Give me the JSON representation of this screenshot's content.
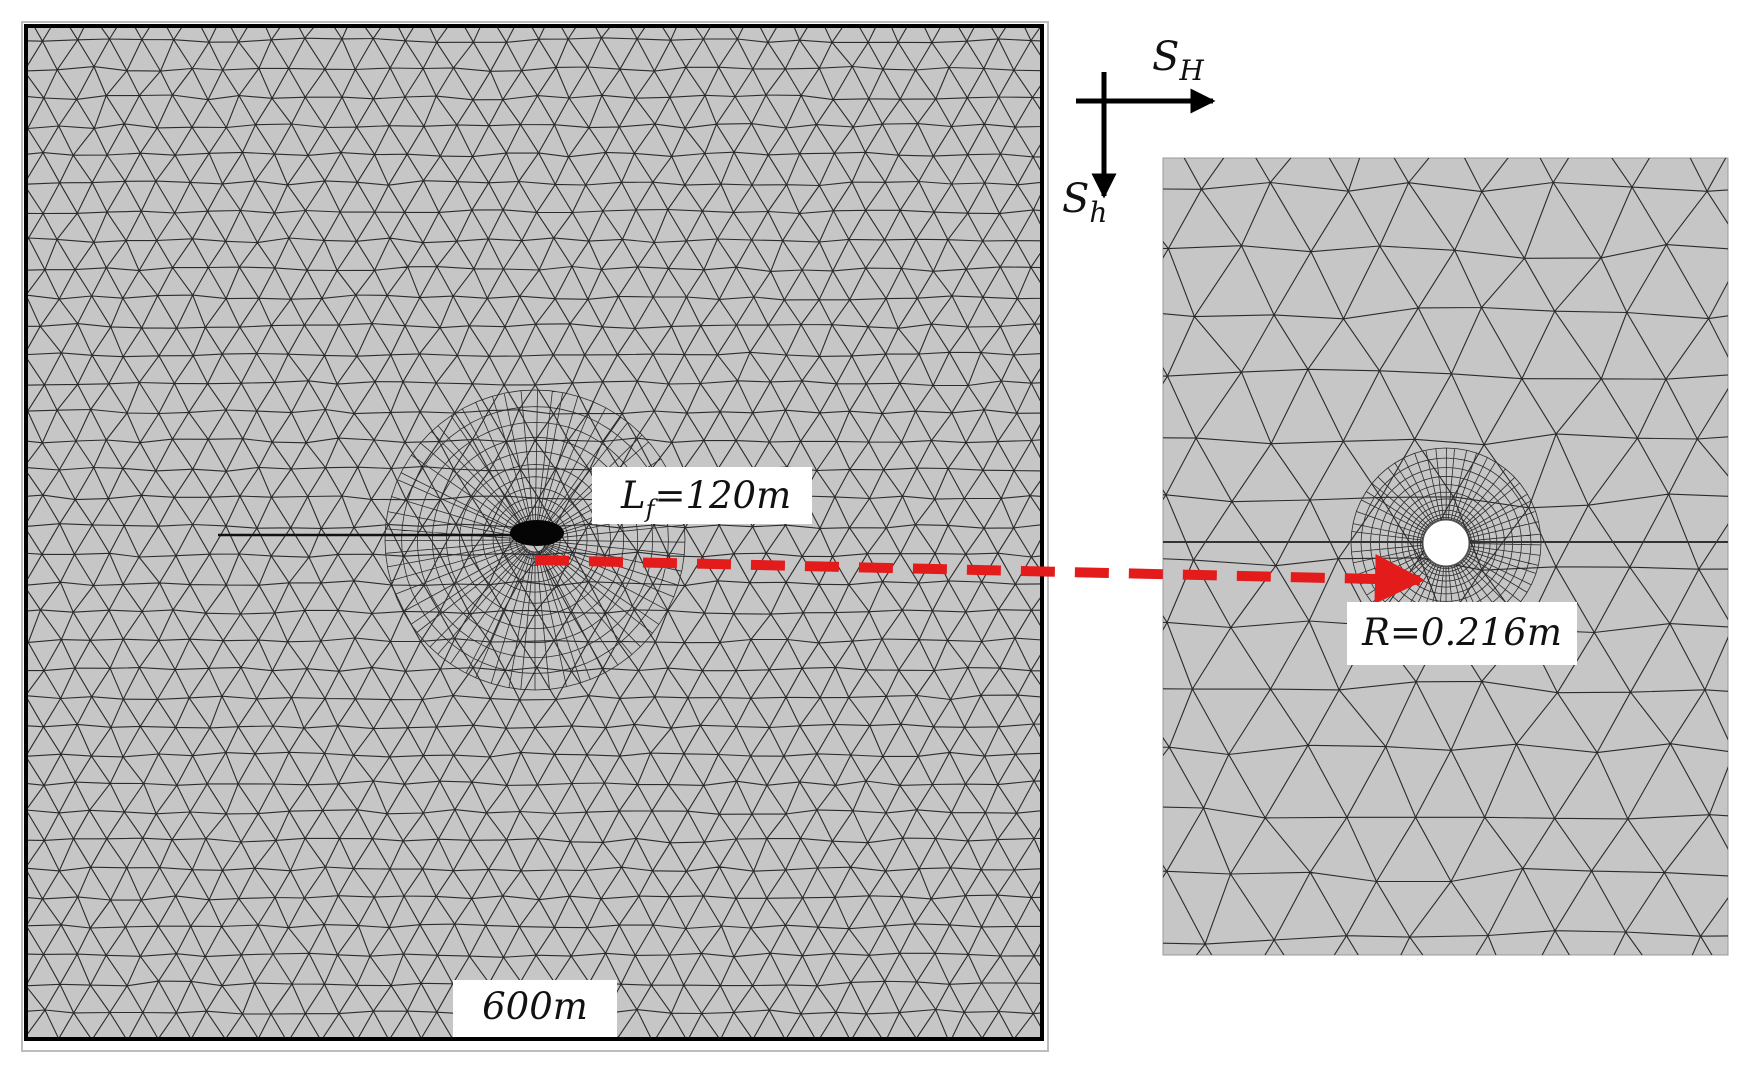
{
  "left_panel": {
    "fracture_label": {
      "main": "L",
      "sub": "f",
      "value": "=120m"
    },
    "size_label": "600m"
  },
  "right_panel": {
    "radius_label": "R=0.216m"
  },
  "stress_axes": {
    "horizontal": {
      "main": "S",
      "sub": "H"
    },
    "vertical": {
      "main": "S",
      "sub": "h"
    }
  },
  "colors": {
    "mesh_fill": "#c6c6c6",
    "mesh_line": "#2b2b2b",
    "arrow": "#e31b1b",
    "frame": "#000000",
    "label_bg": "#ffffff"
  }
}
